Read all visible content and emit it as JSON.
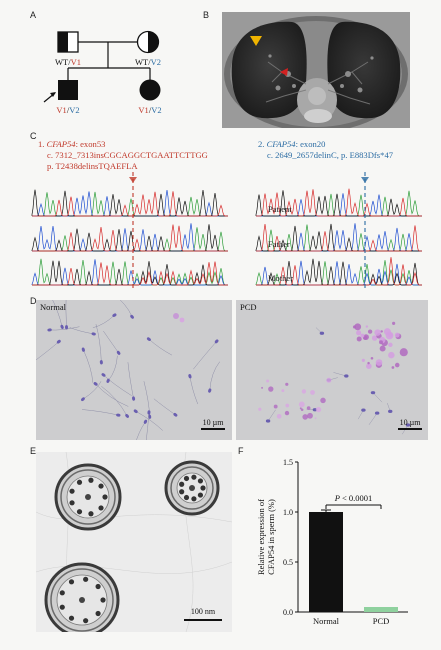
{
  "panel_labels": {
    "a": "A",
    "b": "B",
    "c": "C",
    "d": "D",
    "e": "E",
    "f": "F"
  },
  "pedigree": {
    "father": "WT/V1",
    "mother": "WT/V2",
    "proband": "V1/V2",
    "sibling": "V1/V2",
    "colors": {
      "v1": "#c0392b",
      "v2": "#2b6ca3",
      "black": "#111111"
    }
  },
  "variants": {
    "v1": {
      "line1_index": "1.",
      "line1_gene": "CFAP54",
      "line1_rest": ": exon53",
      "line2": "c. 7312_7313insCGCAGGCTGAATTCTTGG",
      "line3": "p. T2438delinsTQAEFLA"
    },
    "v2": {
      "line1_index": "2.",
      "line1_gene": "CFAP54",
      "line1_rest": ": exon20",
      "line2": "c. 2649_2657delinC, p. E883Dfs*47"
    }
  },
  "chromatogram_rows": [
    "Patient",
    "Father",
    "Mother"
  ],
  "micro": {
    "normal_label": "Normal",
    "pcd_label": "PCD",
    "scale_left": "10 µm",
    "scale_right": "10 µm",
    "tem_scale": "100 nm"
  },
  "chart_data": {
    "type": "bar",
    "categories": [
      "Normal",
      "PCD"
    ],
    "values": [
      1.0,
      0.05
    ],
    "colors": [
      "#111111",
      "#8fd19e"
    ],
    "ylabel": "Relative expression of CFAP54 in sperm (%)",
    "ylim": [
      0,
      1.5
    ],
    "yticks": [
      "0.0",
      "0.5",
      "1.0",
      "1.5"
    ],
    "annotation_p": "P",
    "annotation_rest": " < 0.0001"
  }
}
